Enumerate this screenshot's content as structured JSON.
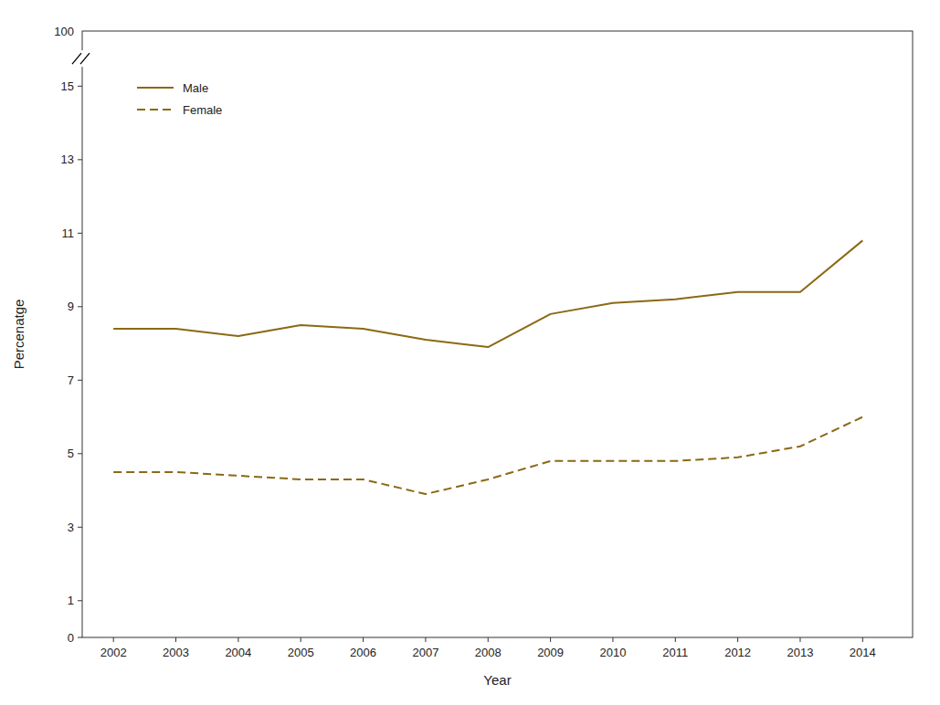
{
  "chart_data": {
    "type": "line",
    "x": [
      2002,
      2003,
      2004,
      2005,
      2006,
      2007,
      2008,
      2009,
      2010,
      2011,
      2012,
      2013,
      2014
    ],
    "series": [
      {
        "name": "Male",
        "color": "#8B6914",
        "line_style": "solid",
        "values": [
          8.4,
          8.4,
          8.2,
          8.5,
          8.4,
          8.1,
          7.9,
          8.8,
          9.1,
          9.2,
          9.4,
          9.4,
          10.8
        ]
      },
      {
        "name": "Female",
        "color": "#8B6914",
        "line_style": "dashed",
        "values": [
          4.5,
          4.5,
          4.4,
          4.3,
          4.3,
          3.9,
          4.3,
          4.8,
          4.8,
          4.8,
          4.9,
          5.2,
          6.0
        ]
      }
    ],
    "xlabel": "Year",
    "ylabel": "Percenatge",
    "xlim": [
      2001.5,
      2014.8
    ],
    "ylim": [
      0,
      16.5
    ],
    "xticks": [
      2002,
      2003,
      2004,
      2005,
      2006,
      2007,
      2008,
      2009,
      2010,
      2011,
      2012,
      2013,
      2014
    ],
    "yticks": [
      0,
      1,
      3,
      5,
      7,
      9,
      11,
      13,
      15
    ],
    "annotations": [
      {
        "text": "100"
      }
    ],
    "legend": "upper left",
    "grid": false
  }
}
